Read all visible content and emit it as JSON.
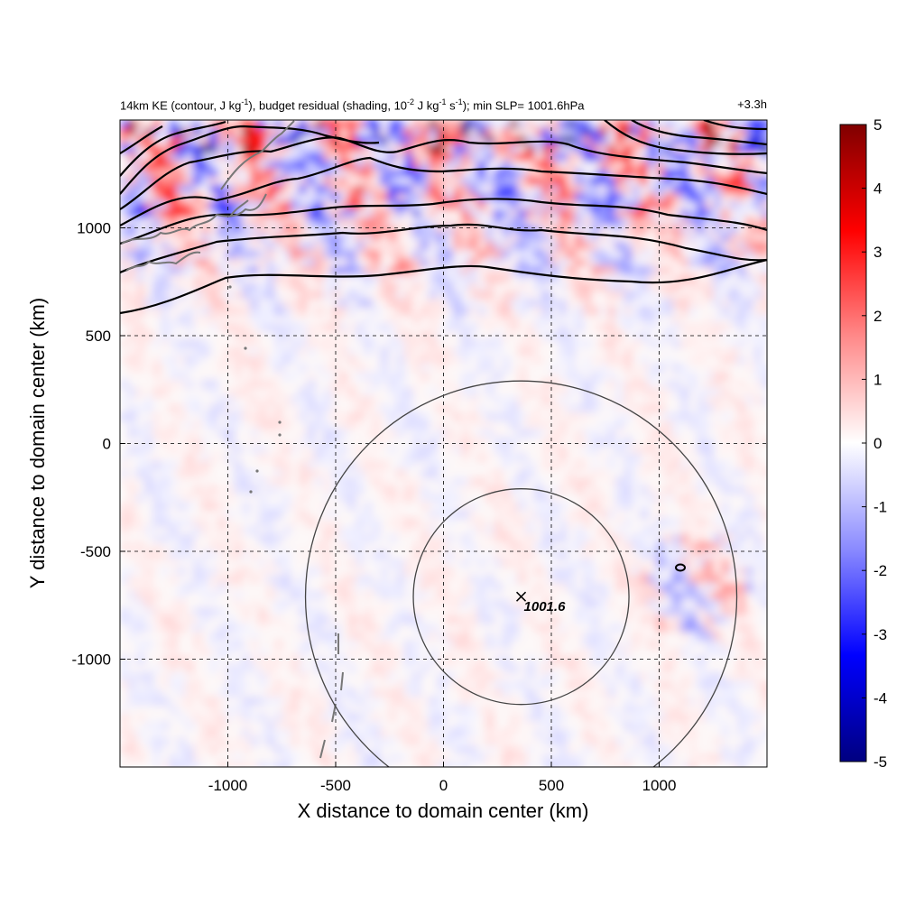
{
  "chart_data": {
    "type": "heatmap",
    "title_parts": {
      "a": "14km KE (contour, J kg",
      "a_sup": "-1",
      "b": "), budget residual (shading, 10",
      "b_sup": "-2",
      "c": " J kg",
      "c_sup": "-1",
      "d": " s",
      "d_sup": "-1",
      "e": "); min SLP= 1001.6hPa"
    },
    "time_label": "+3.3h",
    "xlabel": "X distance to domain center (km)",
    "ylabel": "Y distance to domain center (km)",
    "xlim": [
      -1500,
      1500
    ],
    "ylim": [
      -1500,
      1500
    ],
    "xticks": [
      -1000,
      -500,
      0,
      500,
      1000
    ],
    "yticks": [
      1000,
      500,
      0,
      -500,
      -1000
    ],
    "grid": "dashed",
    "colorbar": {
      "min": -5,
      "max": 5,
      "ticks": [
        5,
        4,
        3,
        2,
        1,
        0,
        -1,
        -2,
        -3,
        -4,
        -5
      ],
      "colors": [
        "#000080",
        "#0000ff",
        "#8a8aff",
        "#ffffff",
        "#ff8a8a",
        "#ff0000",
        "#800000"
      ]
    },
    "storm_center": {
      "x": 360,
      "y": -710,
      "label": "1001.6"
    },
    "range_rings_km": [
      500,
      1000
    ]
  }
}
